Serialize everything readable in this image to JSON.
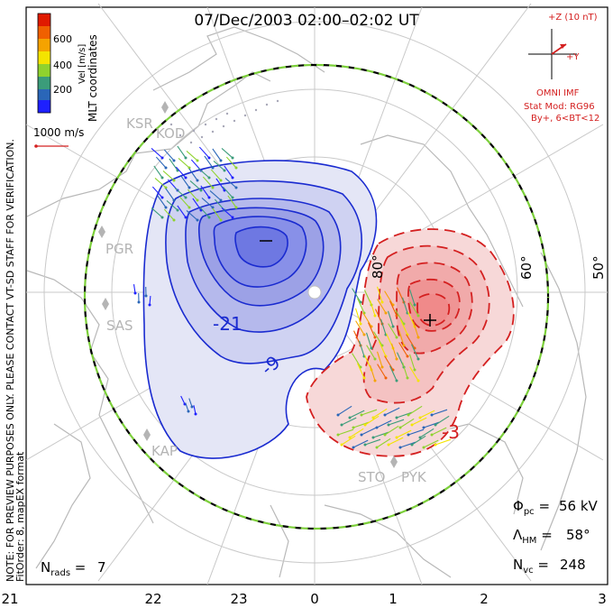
{
  "title": "07/Dec/2003 02:00–02:02 UT",
  "side_note_1": "NOTE: FOR PREVIEW PURPOSES ONLY. PLEASE CONTACT VT-SD STAFF FOR VERIFICATION.",
  "side_note_2": "FitOrder: 8, mapEX format",
  "coord_label": "MLT coordinates",
  "colorbar": {
    "unit_label": "Vel [m/s]",
    "ticks": [
      "600",
      "400",
      "200"
    ],
    "colors": [
      "#1e20ff",
      "#2a66b8",
      "#3b9c7a",
      "#8fd22e",
      "#f4e400",
      "#f5a300",
      "#f06000",
      "#e01a00"
    ]
  },
  "scale_vector_label": "1000 m/s",
  "imf": {
    "z_label": "+Z (10 nT)",
    "y_label": "+Y",
    "source": "OMNI IMF",
    "model": "Stat Mod: RG96",
    "condition": "By+, 6<BT<12"
  },
  "latitude_labels": [
    "80°",
    "60°",
    "50°"
  ],
  "contour_labels": [
    "-21",
    "-9",
    "-3"
  ],
  "stations": [
    "KSR",
    "KOD",
    "PGR",
    "SAS",
    "KAP",
    "STO",
    "PYK"
  ],
  "stats": {
    "phi_pc": "56 kV",
    "lambda_hm": "58°",
    "n_vc": "248",
    "n_rads": "7"
  },
  "mlt_ticks": [
    "21",
    "22",
    "23",
    "0",
    "1",
    "2",
    "3"
  ],
  "potential_colors": {
    "negative_fill": "#8890e8",
    "negative_line": "#1a2bd0",
    "positive_fill": "#f08a8a",
    "positive_line": "#d42020"
  }
}
